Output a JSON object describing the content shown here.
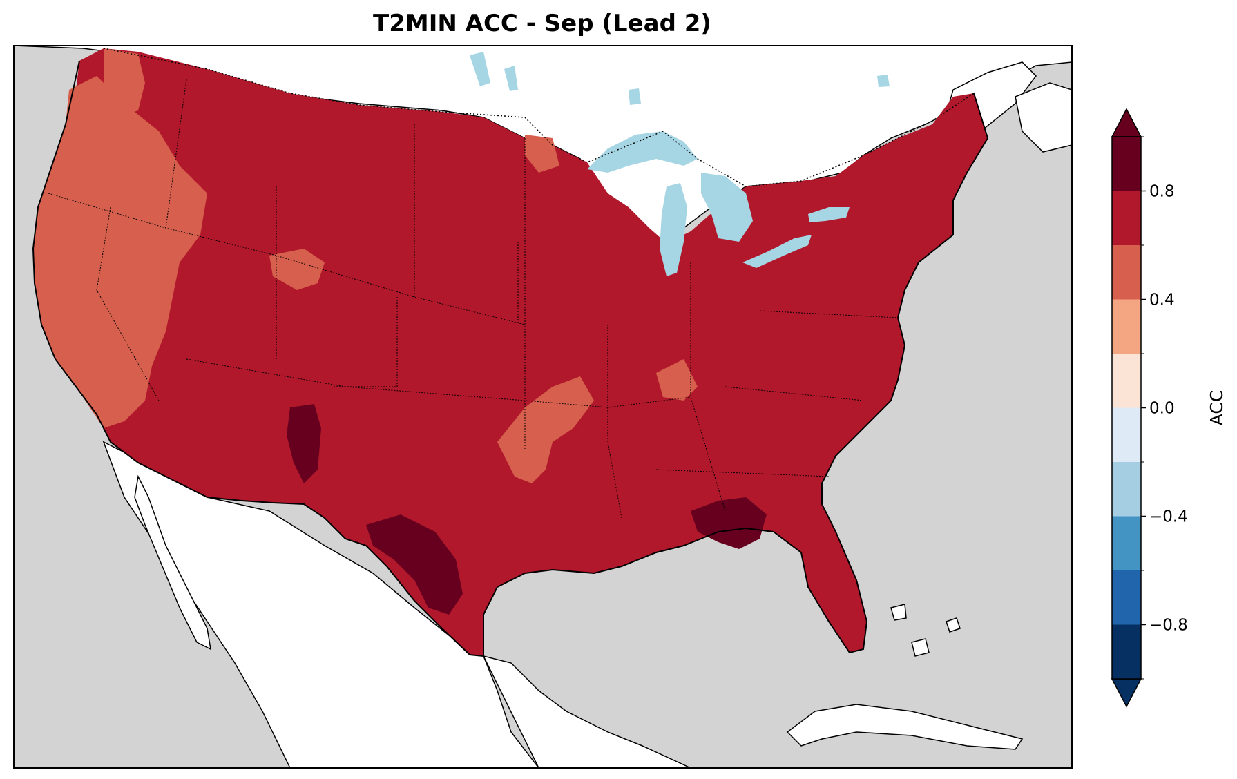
{
  "title": "T2MIN ACC - Sep (Lead 2)",
  "colors": {
    "ocean": "#d3d3d3",
    "land_outside": "#ffffff",
    "lakes": "#a6d5e3",
    "coast": "#000000"
  },
  "colorbar": {
    "label": "ACC",
    "ticks": [
      "0.8",
      "0.4",
      "0.0",
      "−0.4",
      "−0.8"
    ],
    "bins": [
      {
        "range": [
          0.8,
          1.0
        ],
        "color": "#67001f"
      },
      {
        "range": [
          0.6,
          0.8
        ],
        "color": "#b2182b"
      },
      {
        "range": [
          0.4,
          0.6
        ],
        "color": "#d6604d"
      },
      {
        "range": [
          0.2,
          0.4
        ],
        "color": "#f4a582"
      },
      {
        "range": [
          0.0,
          0.2
        ],
        "color": "#fbe3d6"
      },
      {
        "range": [
          -0.2,
          0.0
        ],
        "color": "#deebf7"
      },
      {
        "range": [
          -0.4,
          -0.2
        ],
        "color": "#a6cee3"
      },
      {
        "range": [
          -0.6,
          -0.4
        ],
        "color": "#4393c3"
      },
      {
        "range": [
          -0.8,
          -0.6
        ],
        "color": "#2166ac"
      },
      {
        "range": [
          -1.0,
          -0.8
        ],
        "color": "#053061"
      }
    ],
    "extend_high": "#67001f",
    "extend_low": "#053061"
  },
  "regions": {
    "dominant_acc": "0.6–0.8",
    "west_coast_acc": "0.4–0.6",
    "southern_plains_acc": "0.4–0.6",
    "south_texas_acc": "0.8–1.0",
    "gulf_coast_acc": "0.8–1.0",
    "new_mexico_acc": "0.8–1.0"
  }
}
